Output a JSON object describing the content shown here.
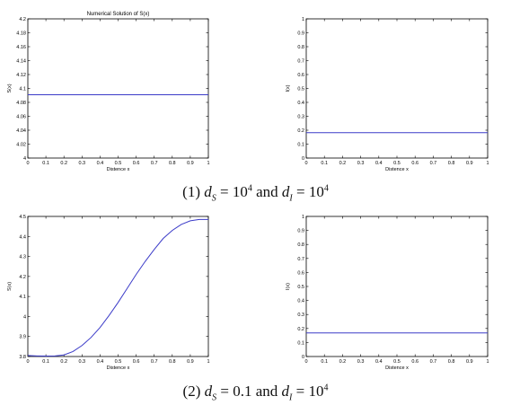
{
  "chart_data": [
    {
      "type": "line",
      "title": "Numerical Solution of S(x)",
      "xlabel": "Distence x",
      "ylabel": "S(x)",
      "xlim": [
        0,
        1
      ],
      "ylim": [
        4.0,
        4.2
      ],
      "xticks": [
        "0",
        "0.1",
        "0.2",
        "0.3",
        "0.4",
        "0.5",
        "0.6",
        "0.7",
        "0.8",
        "0.9",
        "1"
      ],
      "yticks": [
        "4",
        "4.02",
        "4.04",
        "4.06",
        "4.08",
        "4.1",
        "4.12",
        "4.14",
        "4.16",
        "4.18",
        "4.2"
      ],
      "series": [
        {
          "x": [
            0,
            1
          ],
          "y": [
            4.091,
            4.091
          ]
        }
      ]
    },
    {
      "type": "line",
      "title": "",
      "xlabel": "Distence x",
      "ylabel": "I(x)",
      "xlim": [
        0,
        1
      ],
      "ylim": [
        0,
        1
      ],
      "xticks": [
        "0",
        "0.1",
        "0.2",
        "0.3",
        "0.4",
        "0.5",
        "0.6",
        "0.7",
        "0.8",
        "0.9",
        "1"
      ],
      "yticks": [
        "0",
        "0.1",
        "0.2",
        "0.3",
        "0.4",
        "0.5",
        "0.6",
        "0.7",
        "0.8",
        "0.9",
        "1"
      ],
      "series": [
        {
          "x": [
            0,
            1
          ],
          "y": [
            0.182,
            0.182
          ]
        }
      ]
    },
    {
      "type": "line",
      "title": "",
      "xlabel": "Distence x",
      "ylabel": "S(x)",
      "xlim": [
        0,
        1
      ],
      "ylim": [
        3.8,
        4.5
      ],
      "xticks": [
        "0",
        "0.1",
        "0.2",
        "0.3",
        "0.4",
        "0.5",
        "0.6",
        "0.7",
        "0.8",
        "0.9",
        "1"
      ],
      "yticks": [
        "3.8",
        "3.9",
        "4",
        "4.1",
        "4.2",
        "4.3",
        "4.4",
        "4.5"
      ],
      "series": [
        {
          "x": [
            0,
            0.05,
            0.1,
            0.15,
            0.2,
            0.25,
            0.3,
            0.35,
            0.4,
            0.45,
            0.5,
            0.55,
            0.6,
            0.65,
            0.7,
            0.75,
            0.8,
            0.85,
            0.9,
            0.95,
            1.0
          ],
          "y": [
            3.805,
            3.803,
            3.802,
            3.803,
            3.808,
            3.825,
            3.855,
            3.895,
            3.945,
            4.005,
            4.07,
            4.14,
            4.21,
            4.275,
            4.335,
            4.39,
            4.43,
            4.46,
            4.478,
            4.485,
            4.485
          ]
        }
      ]
    },
    {
      "type": "line",
      "title": "",
      "xlabel": "Distence x",
      "ylabel": "I(x)",
      "xlim": [
        0,
        1
      ],
      "ylim": [
        0,
        1
      ],
      "xticks": [
        "0",
        "0.1",
        "0.2",
        "0.3",
        "0.4",
        "0.5",
        "0.6",
        "0.7",
        "0.8",
        "0.9",
        "1"
      ],
      "yticks": [
        "0",
        "0.1",
        "0.2",
        "0.3",
        "0.4",
        "0.5",
        "0.6",
        "0.7",
        "0.8",
        "0.9",
        "1"
      ],
      "series": [
        {
          "x": [
            0,
            1
          ],
          "y": [
            0.168,
            0.168
          ]
        }
      ]
    }
  ],
  "captions": [
    {
      "num": "(1)",
      "ds_sym": "d",
      "ds_sub": "S",
      "eq1": "=",
      "ds_base": "10",
      "ds_exp": "4",
      "and": "and",
      "di_sym": "d",
      "di_sub": "I",
      "eq2": "=",
      "di_base": "10",
      "di_exp": "4"
    },
    {
      "num": "(2)",
      "ds_sym": "d",
      "ds_sub": "S",
      "eq1": "=",
      "ds_base": "0.1",
      "ds_exp": "",
      "and": "and",
      "di_sym": "d",
      "di_sub": "I",
      "eq2": "=",
      "di_base": "10",
      "di_exp": "4"
    }
  ],
  "colors": {
    "line": "#3b3bc8",
    "axis": "#000000",
    "text": "#000000"
  }
}
